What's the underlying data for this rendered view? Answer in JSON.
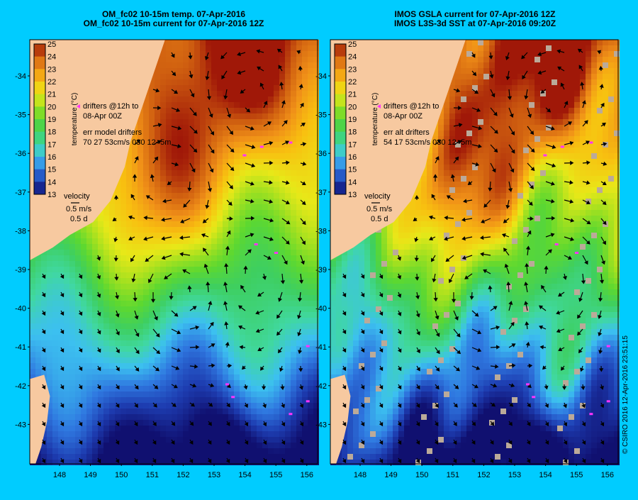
{
  "credit": "© CSIRO 2016  12-Apr-2016 23:51:15",
  "colors": {
    "background": "#00ccff",
    "land": "#f7c9a0",
    "drifter": "#ff33ff",
    "missing": "#bbaa99"
  },
  "colorbar": {
    "label": "temperature (°C)",
    "ticks": [
      25,
      24,
      23,
      22,
      21,
      20,
      19,
      18,
      17,
      16,
      15,
      14,
      13
    ]
  },
  "axes": {
    "lat_labels": [
      "-34",
      "-35",
      "-36",
      "-37",
      "-38",
      "-39",
      "-40",
      "-41",
      "-42",
      "-43"
    ],
    "lon_labels": [
      "148",
      "149",
      "150",
      "151",
      "152",
      "153",
      "154",
      "155",
      "156"
    ]
  },
  "panels": [
    {
      "id": "model",
      "title_line1": "OM_fc02 10-15m temp. 07-Apr-2016",
      "title_line2": "OM_fc02 10-15m current for 07-Apr-2016 12Z",
      "drifters_label_1": "drifters @12h to",
      "drifters_label_2": "08-Apr 00Z",
      "err_label": "err model drifters",
      "err_values": "70 27 53cm/s 030 12+5m",
      "velocity_title": "velocity",
      "velocity_scale": "0.5 m/s",
      "velocity_time": "0.5 d"
    },
    {
      "id": "observed",
      "title_line1": "IMOS GSLA current for 07-Apr-2016 12Z",
      "title_line2": "IMOS L3S-3d SST at 07-Apr-2016 09:20Z",
      "drifters_label_1": "drifters @12h to",
      "drifters_label_2": "08-Apr 00Z",
      "err_label": "err alt drifters",
      "err_values": "54 17 53cm/s 030 12+5m",
      "velocity_title": "velocity",
      "velocity_scale": "0.5 m/s",
      "velocity_time": "0.5 d"
    }
  ]
}
